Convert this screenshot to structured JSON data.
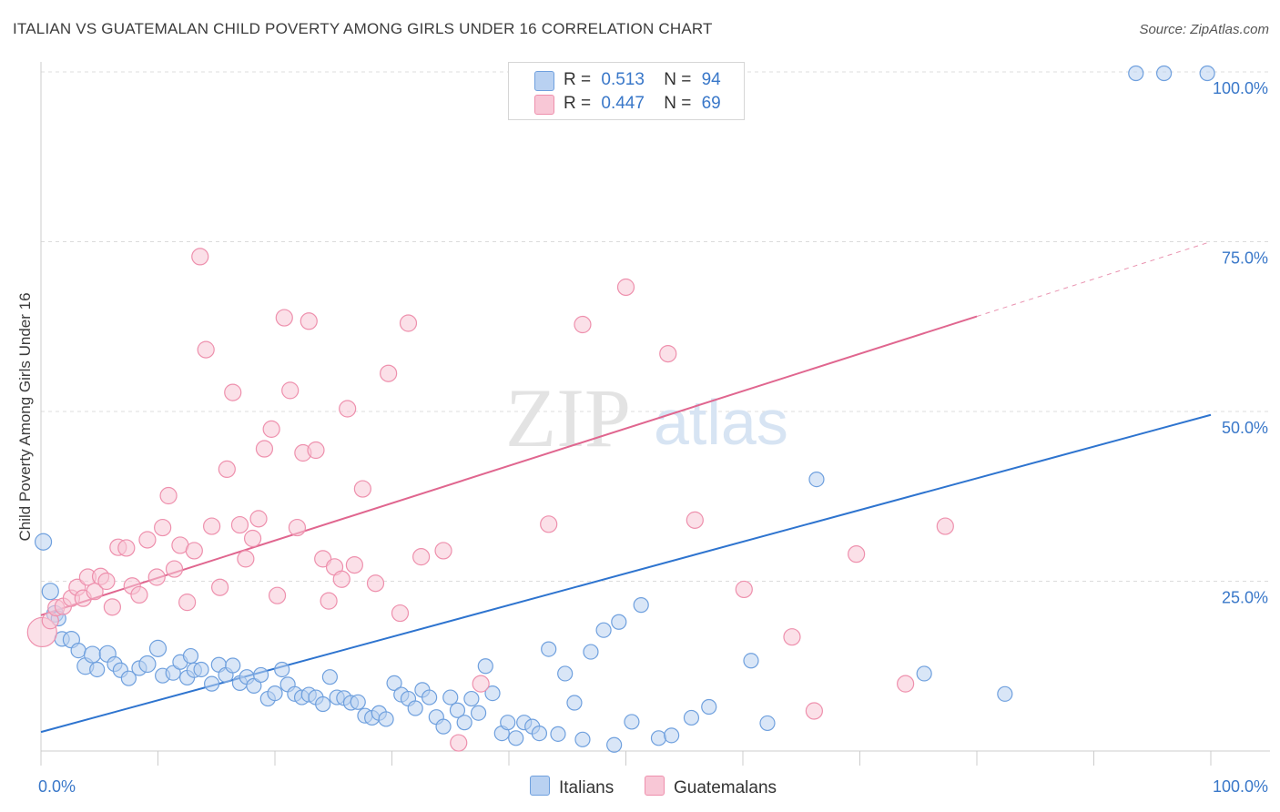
{
  "title": "ITALIAN VS GUATEMALAN CHILD POVERTY AMONG GIRLS UNDER 16 CORRELATION CHART",
  "source": "Source: ZipAtlas.com",
  "watermark": {
    "zip": "ZIP",
    "atlas": "atlas"
  },
  "legend": {
    "rows": [
      {
        "r_label": "R =",
        "r_value": "0.513",
        "n_label": "N =",
        "n_value": "94"
      },
      {
        "r_label": "R =",
        "r_value": "0.447",
        "n_label": "N =",
        "n_value": "69"
      }
    ]
  },
  "colors": {
    "italians": "#6fa0de",
    "italians_fill": "#b9d1f1",
    "italians_line": "#2e74cf",
    "guatemalans": "#ee90ad",
    "guatemalans_fill": "#f8c7d6",
    "guatemalans_line": "#e0668f",
    "axis_text": "#3a78c9"
  },
  "chart_data": {
    "type": "scatter",
    "title": "ITALIAN VS GUATEMALAN CHILD POVERTY AMONG GIRLS UNDER 16 CORRELATION CHART",
    "xlabel": "",
    "ylabel": "Child Poverty Among Girls Under 16",
    "xlim": [
      0,
      100
    ],
    "ylim": [
      0,
      100
    ],
    "x_tick_labels": [
      {
        "value": 0,
        "label": "0.0%"
      },
      {
        "value": 100,
        "label": "100.0%"
      }
    ],
    "y_tick_labels": [
      {
        "value": 25,
        "label": "25.0%"
      },
      {
        "value": 50,
        "label": "50.0%"
      },
      {
        "value": 75,
        "label": "75.0%"
      },
      {
        "value": 100,
        "label": "100.0%"
      }
    ],
    "grid": true,
    "legend_position": "top-center",
    "series": [
      {
        "name": "Italians",
        "r": 0.513,
        "n": 94,
        "trend": {
          "x0": 0,
          "y0": 2.8,
          "x1": 100,
          "y1": 49.5,
          "dashed_from": null
        },
        "points": [
          [
            0.2,
            30.8,
            9
          ],
          [
            0.8,
            23.5,
            9
          ],
          [
            1.2,
            20.2,
            9
          ],
          [
            1.5,
            19.5,
            8
          ],
          [
            1.8,
            16.5,
            8
          ],
          [
            2.6,
            16.4,
            9
          ],
          [
            3.2,
            14.8,
            8
          ],
          [
            3.8,
            12.5,
            9
          ],
          [
            4.4,
            14.2,
            9
          ],
          [
            4.8,
            12.0,
            8
          ],
          [
            5.7,
            14.3,
            9
          ],
          [
            6.3,
            12.8,
            8
          ],
          [
            6.8,
            11.9,
            8
          ],
          [
            7.5,
            10.7,
            8
          ],
          [
            8.4,
            12.2,
            8
          ],
          [
            9.1,
            12.8,
            9
          ],
          [
            10.0,
            15.1,
            9
          ],
          [
            10.4,
            11.1,
            8
          ],
          [
            11.3,
            11.5,
            8
          ],
          [
            11.9,
            13.1,
            8
          ],
          [
            12.5,
            10.8,
            8
          ],
          [
            13.1,
            11.9,
            8
          ],
          [
            13.7,
            12.0,
            8
          ],
          [
            14.6,
            9.9,
            8
          ],
          [
            15.2,
            12.7,
            8
          ],
          [
            15.8,
            11.2,
            8
          ],
          [
            16.4,
            12.6,
            8
          ],
          [
            17.0,
            10.0,
            8
          ],
          [
            17.6,
            10.9,
            8
          ],
          [
            18.2,
            9.6,
            8
          ],
          [
            18.8,
            11.2,
            8
          ],
          [
            19.4,
            7.7,
            8
          ],
          [
            20.0,
            8.5,
            8
          ],
          [
            20.6,
            12.0,
            8
          ],
          [
            21.1,
            9.8,
            8
          ],
          [
            21.7,
            8.4,
            8
          ],
          [
            22.3,
            7.9,
            8
          ],
          [
            22.9,
            8.3,
            8
          ],
          [
            23.5,
            7.9,
            8
          ],
          [
            24.1,
            6.9,
            8
          ],
          [
            24.7,
            10.9,
            8
          ],
          [
            25.3,
            7.9,
            8
          ],
          [
            25.9,
            7.8,
            8
          ],
          [
            26.5,
            7.1,
            8
          ],
          [
            27.1,
            7.2,
            8
          ],
          [
            27.7,
            5.2,
            8
          ],
          [
            28.3,
            4.9,
            8
          ],
          [
            28.9,
            5.6,
            8
          ],
          [
            29.5,
            4.7,
            8
          ],
          [
            30.2,
            10.0,
            8
          ],
          [
            30.8,
            8.3,
            8
          ],
          [
            31.4,
            7.7,
            8
          ],
          [
            32.0,
            6.3,
            8
          ],
          [
            32.6,
            9.0,
            8
          ],
          [
            33.2,
            7.9,
            8
          ],
          [
            33.8,
            5.0,
            8
          ],
          [
            34.4,
            3.6,
            8
          ],
          [
            35.0,
            7.9,
            8
          ],
          [
            35.6,
            6.0,
            8
          ],
          [
            36.2,
            4.2,
            8
          ],
          [
            36.8,
            7.7,
            8
          ],
          [
            37.4,
            5.6,
            8
          ],
          [
            38.0,
            12.5,
            8
          ],
          [
            38.6,
            8.5,
            8
          ],
          [
            39.4,
            2.6,
            8
          ],
          [
            39.9,
            4.2,
            8
          ],
          [
            40.6,
            1.9,
            8
          ],
          [
            41.3,
            4.2,
            8
          ],
          [
            42.0,
            3.6,
            8
          ],
          [
            42.6,
            2.6,
            8
          ],
          [
            43.4,
            15.0,
            8
          ],
          [
            44.2,
            2.5,
            8
          ],
          [
            44.8,
            11.4,
            8
          ],
          [
            45.6,
            7.1,
            8
          ],
          [
            46.3,
            1.7,
            8
          ],
          [
            47.0,
            14.6,
            8
          ],
          [
            48.1,
            17.8,
            8
          ],
          [
            49.0,
            0.9,
            8
          ],
          [
            49.4,
            19.0,
            8
          ],
          [
            50.5,
            4.3,
            8
          ],
          [
            51.3,
            21.5,
            8
          ],
          [
            52.8,
            1.9,
            8
          ],
          [
            53.9,
            2.3,
            8
          ],
          [
            55.6,
            4.9,
            8
          ],
          [
            57.1,
            6.5,
            8
          ],
          [
            60.7,
            13.3,
            8
          ],
          [
            62.1,
            4.1,
            8
          ],
          [
            66.3,
            40.0,
            8
          ],
          [
            75.5,
            11.4,
            8
          ],
          [
            82.4,
            8.4,
            8
          ],
          [
            93.6,
            99.8,
            8
          ],
          [
            96.0,
            99.8,
            8
          ],
          [
            99.7,
            99.8,
            8
          ],
          [
            12.8,
            14.0,
            8
          ]
        ]
      },
      {
        "name": "Guatemalans",
        "r": 0.447,
        "n": 69,
        "trend": {
          "x0": 0,
          "y0": 20.0,
          "x1": 80,
          "y1": 64.0,
          "dashed_from": 80,
          "dashed_to": [
            100,
            75.0
          ]
        },
        "points": [
          [
            0.1,
            17.5,
            16
          ],
          [
            0.8,
            19.2,
            9
          ],
          [
            1.3,
            21.1,
            9
          ],
          [
            1.9,
            21.3,
            9
          ],
          [
            2.6,
            22.5,
            9
          ],
          [
            3.1,
            24.1,
            9
          ],
          [
            3.6,
            22.5,
            9
          ],
          [
            4.0,
            25.6,
            9
          ],
          [
            4.6,
            23.5,
            9
          ],
          [
            5.1,
            25.7,
            9
          ],
          [
            5.6,
            25.0,
            9
          ],
          [
            6.1,
            21.2,
            9
          ],
          [
            6.6,
            30.0,
            9
          ],
          [
            7.3,
            29.9,
            9
          ],
          [
            7.8,
            24.3,
            9
          ],
          [
            8.4,
            23.0,
            9
          ],
          [
            9.1,
            31.1,
            9
          ],
          [
            9.9,
            25.6,
            9
          ],
          [
            10.4,
            32.9,
            9
          ],
          [
            10.9,
            37.6,
            9
          ],
          [
            11.4,
            26.8,
            9
          ],
          [
            11.9,
            30.3,
            9
          ],
          [
            12.5,
            21.9,
            9
          ],
          [
            13.1,
            29.5,
            9
          ],
          [
            13.6,
            72.8,
            9
          ],
          [
            14.1,
            59.1,
            9
          ],
          [
            14.6,
            33.1,
            9
          ],
          [
            15.3,
            24.1,
            9
          ],
          [
            15.9,
            41.5,
            9
          ],
          [
            16.4,
            52.8,
            9
          ],
          [
            17.0,
            33.3,
            9
          ],
          [
            17.5,
            28.3,
            9
          ],
          [
            18.1,
            31.3,
            9
          ],
          [
            18.6,
            34.2,
            9
          ],
          [
            19.1,
            44.5,
            9
          ],
          [
            19.7,
            47.4,
            9
          ],
          [
            20.2,
            22.9,
            9
          ],
          [
            20.8,
            63.8,
            9
          ],
          [
            21.3,
            53.1,
            9
          ],
          [
            21.9,
            32.9,
            9
          ],
          [
            22.4,
            43.9,
            9
          ],
          [
            22.9,
            63.3,
            9
          ],
          [
            23.5,
            44.3,
            9
          ],
          [
            24.1,
            28.3,
            9
          ],
          [
            24.6,
            22.1,
            9
          ],
          [
            25.1,
            27.1,
            9
          ],
          [
            25.7,
            25.3,
            9
          ],
          [
            26.2,
            50.4,
            9
          ],
          [
            26.8,
            27.4,
            9
          ],
          [
            27.5,
            38.6,
            9
          ],
          [
            28.6,
            24.7,
            9
          ],
          [
            29.7,
            55.6,
            9
          ],
          [
            30.7,
            20.3,
            9
          ],
          [
            31.4,
            63.0,
            9
          ],
          [
            32.5,
            28.6,
            9
          ],
          [
            34.4,
            29.5,
            9
          ],
          [
            35.7,
            1.2,
            9
          ],
          [
            37.6,
            9.9,
            9
          ],
          [
            43.4,
            33.4,
            9
          ],
          [
            46.3,
            62.8,
            9
          ],
          [
            50.0,
            68.3,
            9
          ],
          [
            53.6,
            58.5,
            9
          ],
          [
            55.9,
            34.0,
            9
          ],
          [
            60.1,
            23.8,
            9
          ],
          [
            64.2,
            16.8,
            9
          ],
          [
            66.1,
            5.9,
            9
          ],
          [
            69.7,
            29.0,
            9
          ],
          [
            73.9,
            9.9,
            9
          ],
          [
            77.3,
            33.1,
            9
          ]
        ]
      }
    ]
  },
  "bottom_legend": [
    "Italians",
    "Guatemalans"
  ]
}
